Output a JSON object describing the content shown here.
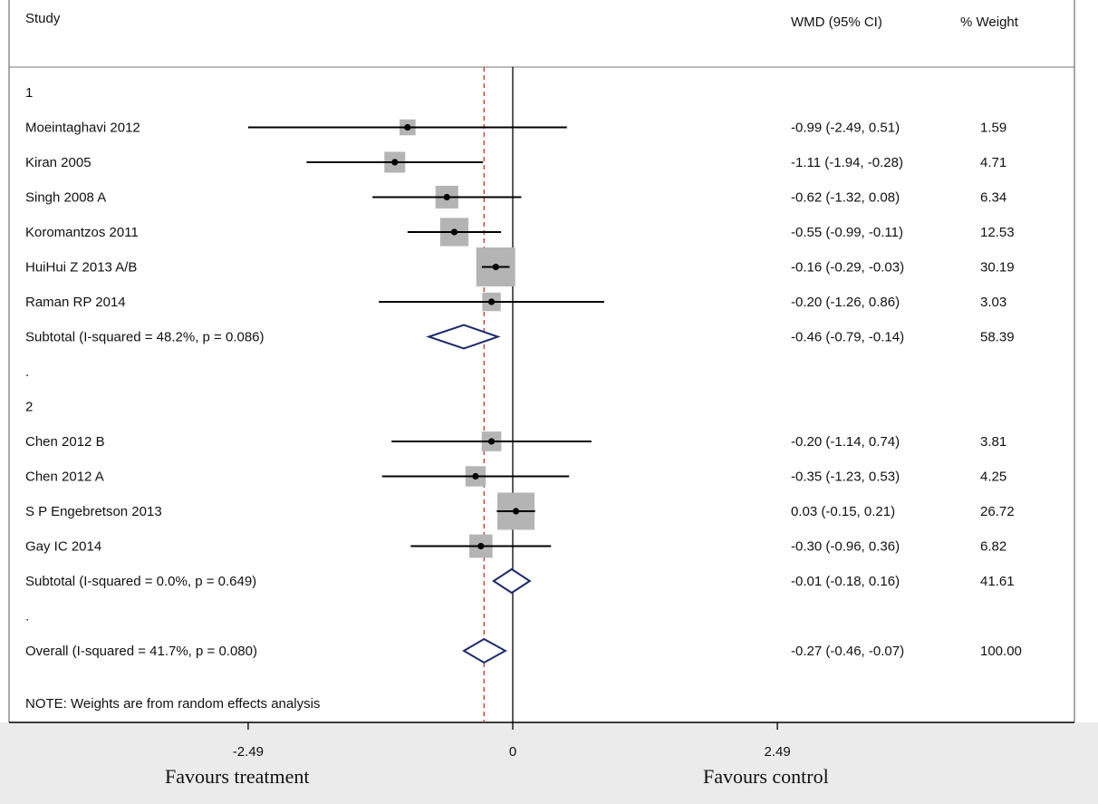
{
  "chart_data": {
    "type": "forest",
    "headers": {
      "study": "Study",
      "effect": "WMD (95% CI)",
      "weight": "% Weight"
    },
    "x_axis": {
      "ticks": [
        {
          "value": -2.49,
          "label": "-2.49"
        },
        {
          "value": 0,
          "label": "0"
        },
        {
          "value": 2.49,
          "label": "2.49"
        }
      ],
      "left_label": "Favours treatment",
      "right_label": "Favours control"
    },
    "overall_effect": -0.27,
    "rows": [
      {
        "kind": "group",
        "label": "1"
      },
      {
        "kind": "study",
        "label": "Moeintaghavi 2012",
        "est": -0.99,
        "lo": -2.49,
        "hi": 0.51,
        "weight": 1.59,
        "ci_text": "-0.99 (-2.49, 0.51)",
        "weight_text": "1.59"
      },
      {
        "kind": "study",
        "label": "Kiran 2005",
        "est": -1.11,
        "lo": -1.94,
        "hi": -0.28,
        "weight": 4.71,
        "ci_text": "-1.11 (-1.94, -0.28)",
        "weight_text": "4.71"
      },
      {
        "kind": "study",
        "label": "Singh 2008 A",
        "est": -0.62,
        "lo": -1.32,
        "hi": 0.08,
        "weight": 6.34,
        "ci_text": "-0.62 (-1.32, 0.08)",
        "weight_text": "6.34"
      },
      {
        "kind": "study",
        "label": "Koromantzos 2011",
        "est": -0.55,
        "lo": -0.99,
        "hi": -0.11,
        "weight": 12.53,
        "ci_text": "-0.55 (-0.99, -0.11)",
        "weight_text": "12.53"
      },
      {
        "kind": "study",
        "label": "HuiHui Z 2013 A/B",
        "est": -0.16,
        "lo": -0.29,
        "hi": -0.03,
        "weight": 30.19,
        "ci_text": "-0.16 (-0.29, -0.03)",
        "weight_text": "30.19"
      },
      {
        "kind": "study",
        "label": "Raman RP 2014",
        "est": -0.2,
        "lo": -1.26,
        "hi": 0.86,
        "weight": 3.03,
        "ci_text": "-0.20 (-1.26, 0.86)",
        "weight_text": "3.03"
      },
      {
        "kind": "subtotal",
        "label": "Subtotal  (I-squared = 48.2%, p = 0.086)",
        "est": -0.46,
        "lo": -0.79,
        "hi": -0.14,
        "ci_text": "-0.46 (-0.79, -0.14)",
        "weight_text": "58.39"
      },
      {
        "kind": "spacer",
        "label": "."
      },
      {
        "kind": "group",
        "label": "2"
      },
      {
        "kind": "study",
        "label": "Chen 2012 B",
        "est": -0.2,
        "lo": -1.14,
        "hi": 0.74,
        "weight": 3.81,
        "ci_text": "-0.20 (-1.14, 0.74)",
        "weight_text": "3.81"
      },
      {
        "kind": "study",
        "label": "Chen  2012 A",
        "est": -0.35,
        "lo": -1.23,
        "hi": 0.53,
        "weight": 4.25,
        "ci_text": "-0.35 (-1.23, 0.53)",
        "weight_text": "4.25"
      },
      {
        "kind": "study",
        "label": "S P Engebretson 2013",
        "est": 0.03,
        "lo": -0.15,
        "hi": 0.21,
        "weight": 26.72,
        "ci_text": "0.03 (-0.15, 0.21)",
        "weight_text": "26.72"
      },
      {
        "kind": "study",
        "label": "Gay IC 2014",
        "est": -0.3,
        "lo": -0.96,
        "hi": 0.36,
        "weight": 6.82,
        "ci_text": "-0.30 (-0.96, 0.36)",
        "weight_text": "6.82"
      },
      {
        "kind": "subtotal",
        "label": "Subtotal  (I-squared = 0.0%, p = 0.649)",
        "est": -0.01,
        "lo": -0.18,
        "hi": 0.16,
        "ci_text": "-0.01 (-0.18, 0.16)",
        "weight_text": "41.61"
      },
      {
        "kind": "spacer",
        "label": "."
      },
      {
        "kind": "overall",
        "label": "Overall  (I-squared = 41.7%, p = 0.080)",
        "est": -0.27,
        "lo": -0.46,
        "hi": -0.07,
        "ci_text": "-0.27 (-0.46, -0.07)",
        "weight_text": "100.00"
      }
    ],
    "note": "NOTE: Weights are from random effects analysis",
    "colors": {
      "square": "#b4b4b4",
      "diamond": "#1f2a6b",
      "ci_line": "#000000",
      "ref_line": "#c0392b",
      "axis_bg": "#ebebeb"
    }
  }
}
